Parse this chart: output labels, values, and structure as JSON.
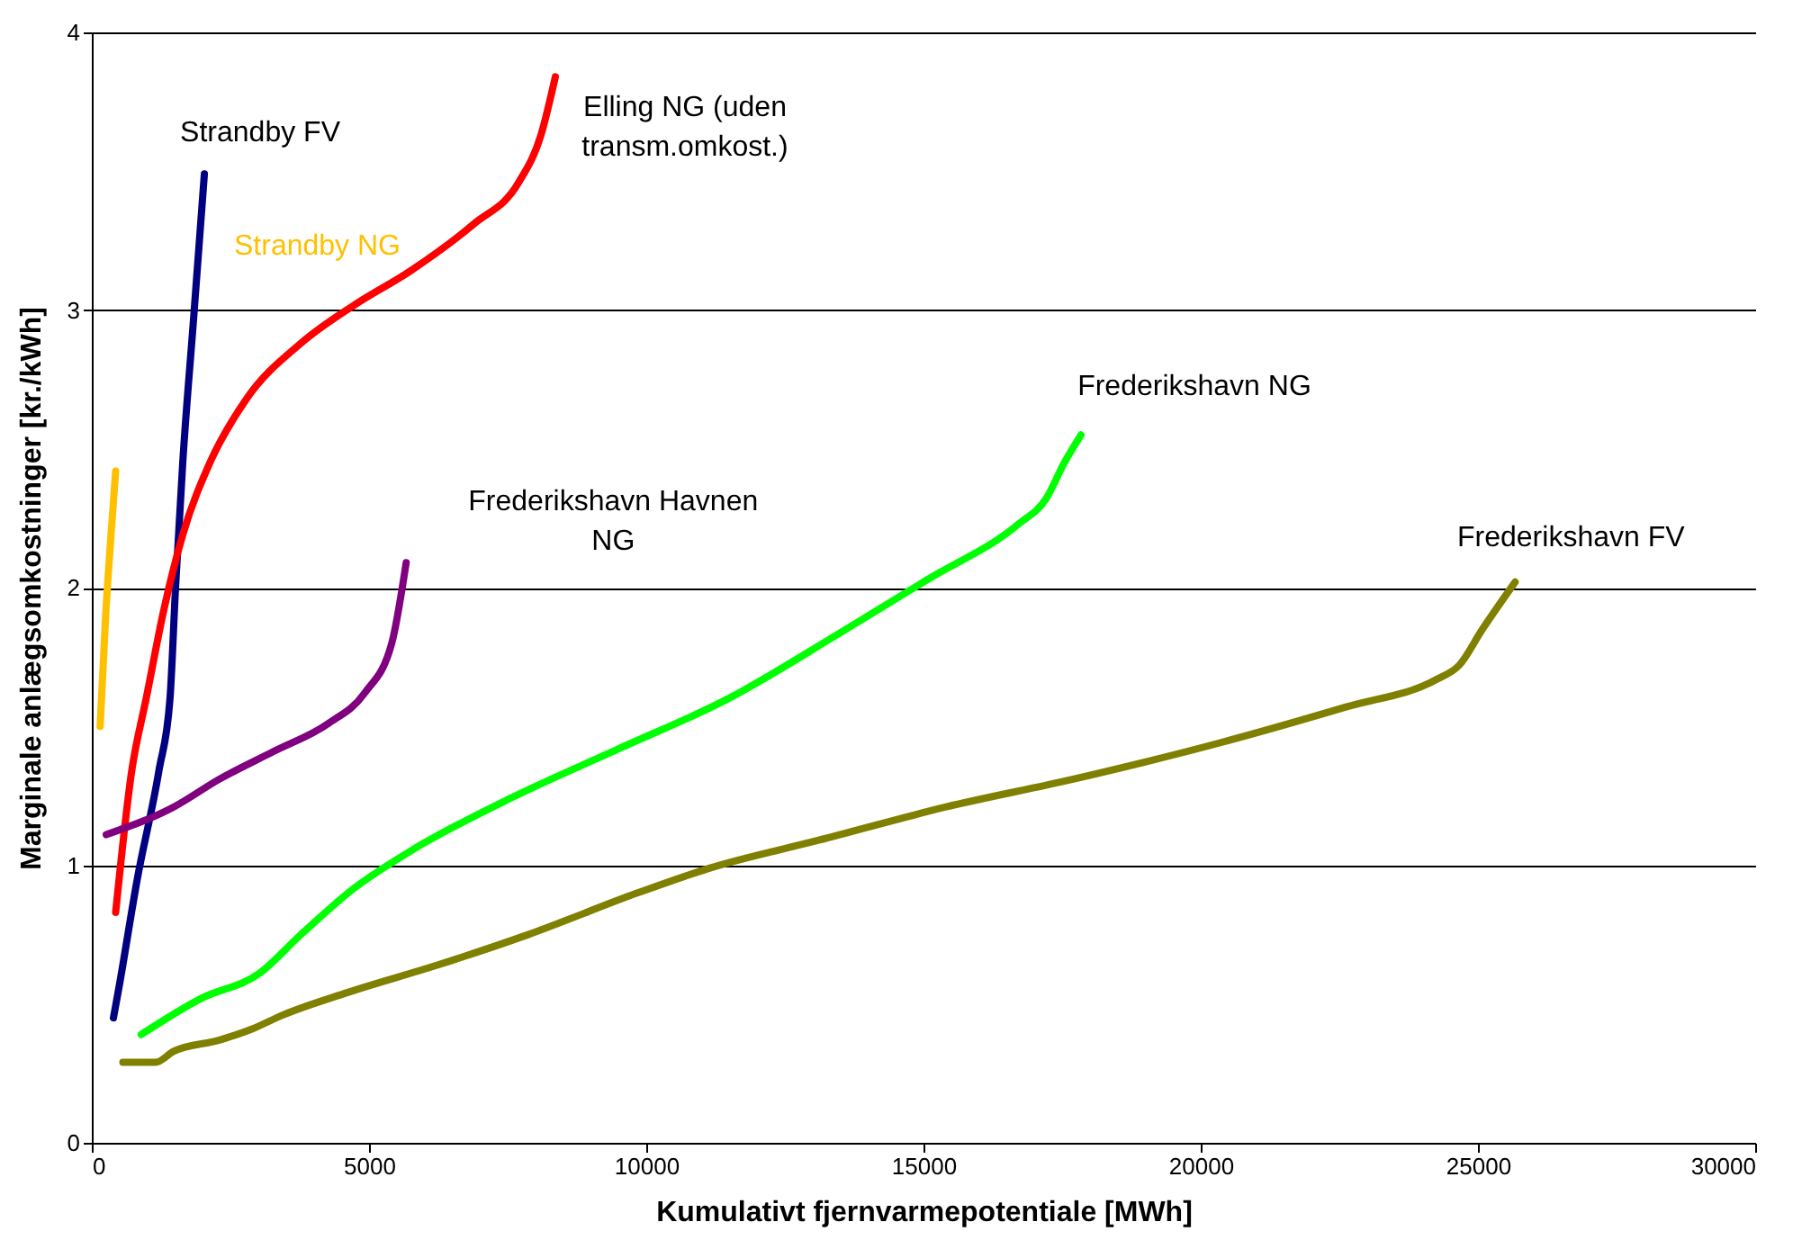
{
  "chart_data": {
    "type": "line",
    "xlabel": "Kumulativt fjernvarmepotentiale [MWh]",
    "ylabel": "Marginale anlægsomkostninger [kr./kWh]",
    "xlim": [
      0,
      30000
    ],
    "xticks": [
      0,
      5000,
      10000,
      15000,
      20000,
      25000,
      30000
    ],
    "ylim": [
      0,
      4
    ],
    "yticks": [
      0,
      1,
      2,
      3,
      4
    ],
    "grid": "y",
    "marker": "none",
    "line_style": "solid",
    "series": [
      {
        "name": "Strandby NG",
        "color": "#ffc000",
        "x": [
          150,
          250,
          350,
          430
        ],
        "values": [
          1.5,
          1.9,
          2.2,
          2.42
        ]
      },
      {
        "name": "Strandby FV",
        "color": "#000080",
        "x": [
          390,
          490,
          820,
          1210,
          1410,
          1510,
          1640,
          1840,
          2030
        ],
        "values": [
          0.45,
          0.56,
          0.95,
          1.34,
          1.6,
          2.0,
          2.45,
          2.98,
          3.49
        ]
      },
      {
        "name": "Elling NG (uden transm.omkost.)",
        "color": "#ff0000",
        "x": [
          430,
          720,
          980,
          1310,
          1640,
          2130,
          2790,
          3770,
          4750,
          5740,
          6890,
          7700,
          8100,
          8360
        ],
        "values": [
          0.83,
          1.34,
          1.6,
          1.93,
          2.19,
          2.45,
          2.68,
          2.88,
          3.02,
          3.14,
          3.31,
          3.46,
          3.63,
          3.84
        ]
      },
      {
        "name": "Frederikshavn Havnen NG",
        "color": "#800080",
        "x": [
          260,
          1480,
          2300,
          3280,
          4260,
          4920,
          5410,
          5670
        ],
        "values": [
          1.11,
          1.21,
          1.31,
          1.41,
          1.51,
          1.62,
          1.8,
          2.09
        ]
      },
      {
        "name": "Frederikshavn NG",
        "color": "#00ff00",
        "x": [
          890,
          1970,
          3020,
          3770,
          4750,
          5740,
          7540,
          9510,
          11480,
          13440,
          15080,
          16720,
          17210,
          17540,
          17840
        ],
        "values": [
          0.39,
          0.52,
          0.61,
          0.75,
          0.92,
          1.05,
          1.24,
          1.42,
          1.6,
          1.83,
          2.03,
          2.23,
          2.32,
          2.45,
          2.55
        ]
      },
      {
        "name": "Frederikshavn FV",
        "color": "#808000",
        "x": [
          560,
          1150,
          1480,
          2300,
          2890,
          3440,
          4590,
          6230,
          7870,
          9840,
          11150,
          13110,
          15410,
          17700,
          20330,
          22620,
          24260,
          24660,
          25080,
          25670
        ],
        "values": [
          0.29,
          0.29,
          0.33,
          0.37,
          0.41,
          0.46,
          0.54,
          0.64,
          0.75,
          0.9,
          0.99,
          1.09,
          1.21,
          1.31,
          1.44,
          1.57,
          1.67,
          1.72,
          1.85,
          2.02
        ]
      }
    ]
  }
}
